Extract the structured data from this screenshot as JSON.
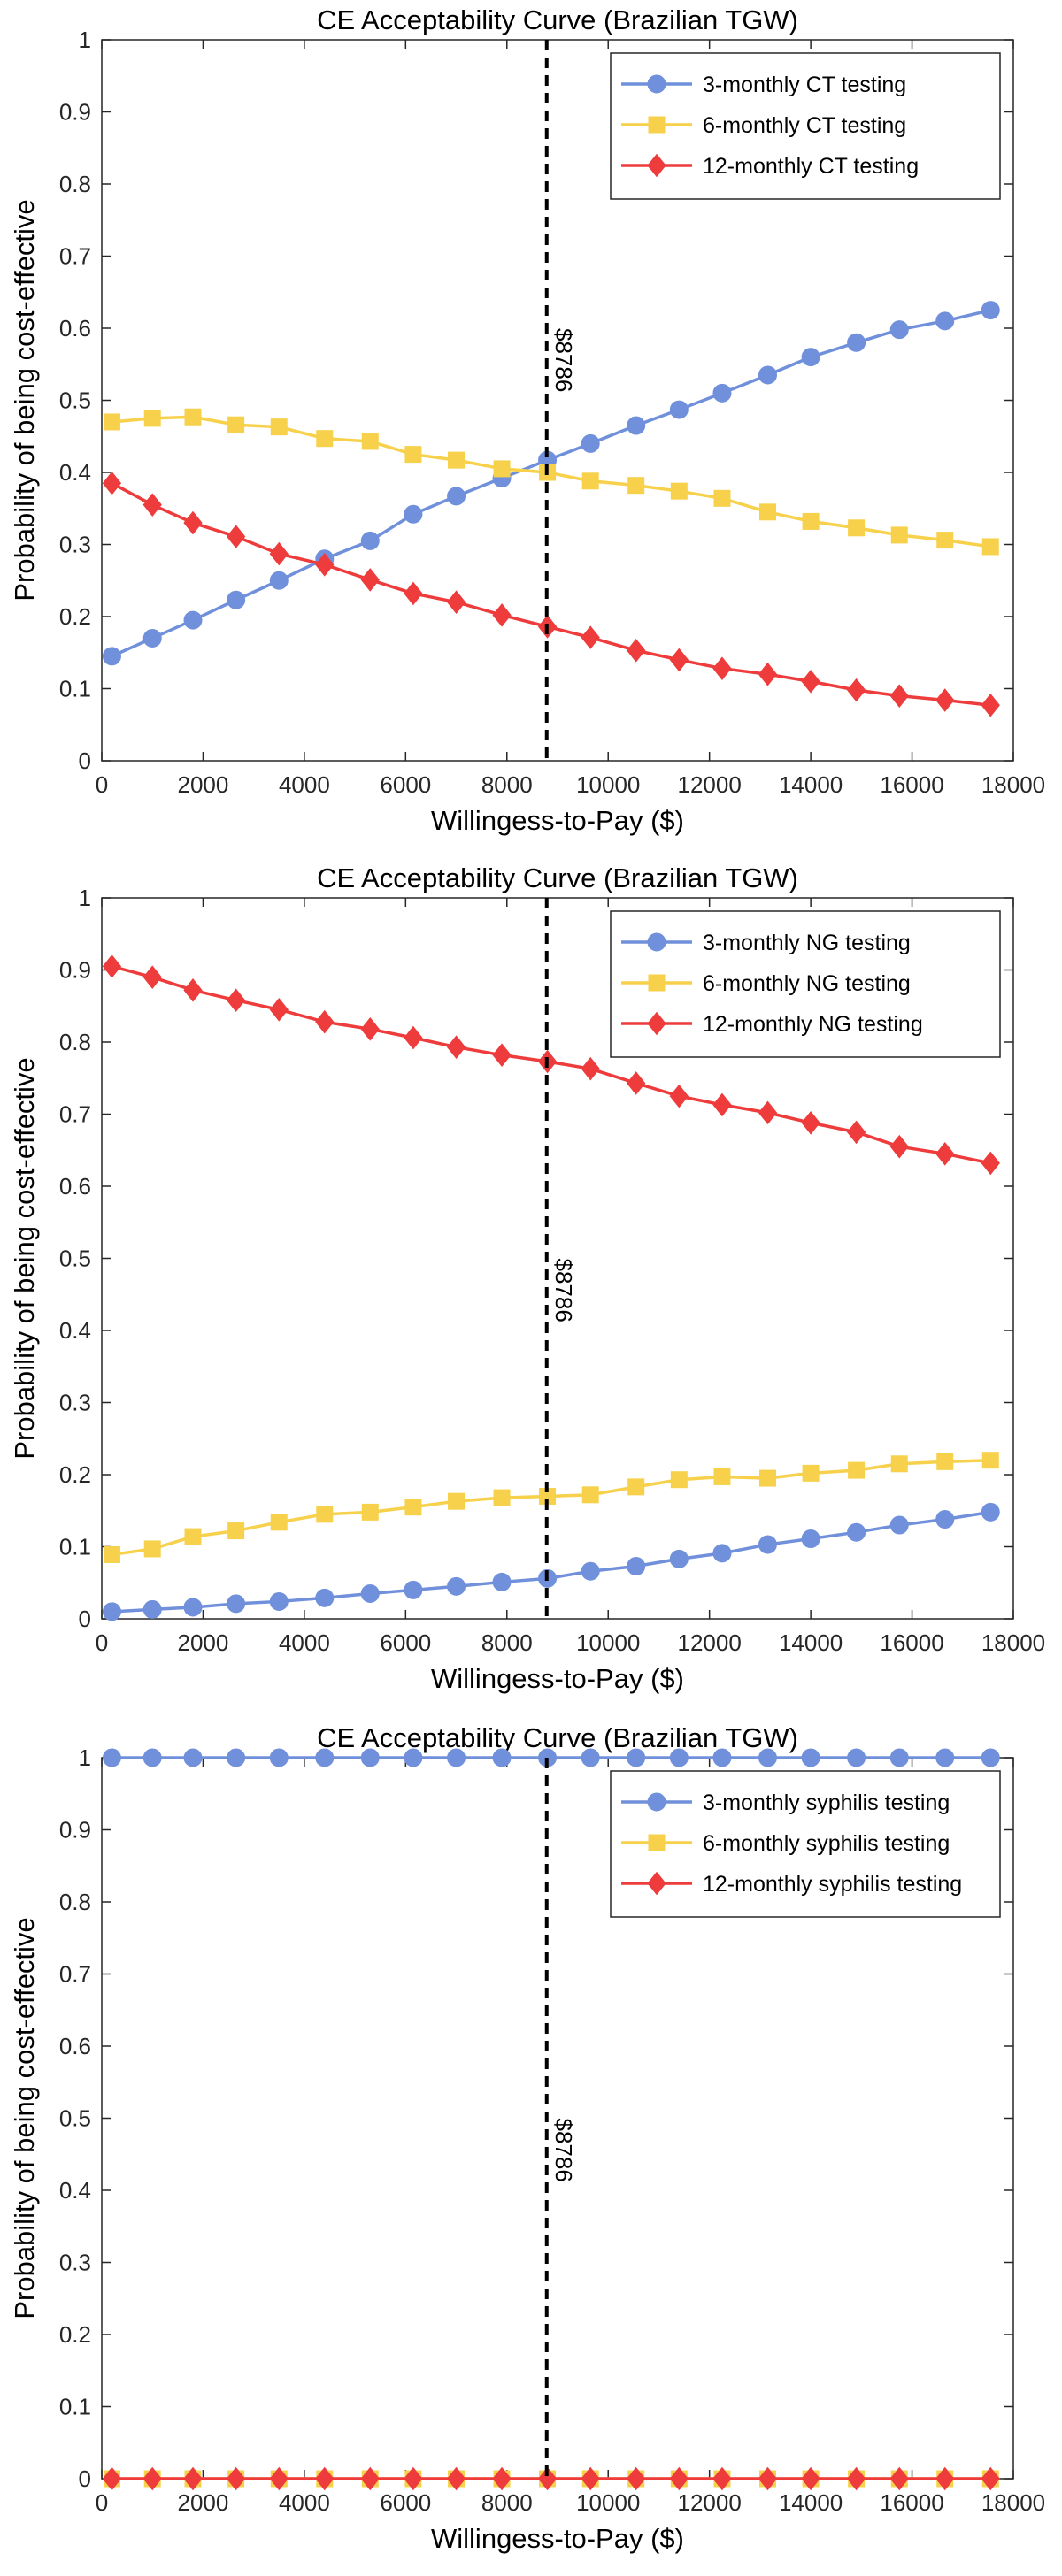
{
  "chart_data": [
    {
      "type": "line",
      "title": "CE Acceptability Curve (Brazilian TGW)",
      "xlabel": "Willingess-to-Pay ($)",
      "ylabel": "Probability of being cost-effective",
      "xlim": [
        0,
        18000
      ],
      "ylim": [
        0,
        1
      ],
      "xticks": [
        0,
        2000,
        4000,
        6000,
        8000,
        10000,
        12000,
        14000,
        16000,
        18000
      ],
      "yticks": [
        0,
        0.1,
        0.2,
        0.3,
        0.4,
        0.5,
        0.6,
        0.7,
        0.8,
        0.9,
        1
      ],
      "legend_position": "top-right",
      "grid": false,
      "x": [
        200,
        1000,
        1800,
        2650,
        3500,
        4400,
        5300,
        6150,
        7000,
        7900,
        8800,
        9650,
        10550,
        11400,
        12250,
        13150,
        14000,
        14900,
        15750,
        16650,
        17550
      ],
      "series": [
        {
          "name": "3-monthly CT testing",
          "color": "#7090dc",
          "marker": "circle",
          "values": [
            0.145,
            0.17,
            0.195,
            0.223,
            0.25,
            0.28,
            0.305,
            0.342,
            0.367,
            0.392,
            0.417,
            0.44,
            0.465,
            0.487,
            0.51,
            0.535,
            0.56,
            0.58,
            0.598,
            0.61,
            0.625
          ]
        },
        {
          "name": "6-monthly CT testing",
          "color": "#f7d14b",
          "marker": "square",
          "values": [
            0.47,
            0.475,
            0.477,
            0.466,
            0.463,
            0.447,
            0.443,
            0.425,
            0.417,
            0.405,
            0.4,
            0.388,
            0.382,
            0.374,
            0.364,
            0.345,
            0.332,
            0.323,
            0.313,
            0.306,
            0.297
          ]
        },
        {
          "name": "12-monthly CT testing",
          "color": "#ee3b3b",
          "marker": "diamond",
          "values": [
            0.385,
            0.355,
            0.33,
            0.311,
            0.287,
            0.272,
            0.251,
            0.232,
            0.22,
            0.202,
            0.186,
            0.171,
            0.153,
            0.14,
            0.128,
            0.12,
            0.11,
            0.098,
            0.09,
            0.084,
            0.077
          ]
        }
      ],
      "vline": {
        "x": 8786,
        "label": "$8786",
        "label_y": 0.6
      }
    },
    {
      "type": "line",
      "title": "CE Acceptability Curve (Brazilian TGW)",
      "xlabel": "Willingess-to-Pay ($)",
      "ylabel": "Probability of being cost-effective",
      "xlim": [
        0,
        18000
      ],
      "ylim": [
        0,
        1
      ],
      "xticks": [
        0,
        2000,
        4000,
        6000,
        8000,
        10000,
        12000,
        14000,
        16000,
        18000
      ],
      "yticks": [
        0,
        0.1,
        0.2,
        0.3,
        0.4,
        0.5,
        0.6,
        0.7,
        0.8,
        0.9,
        1
      ],
      "legend_position": "top-right",
      "grid": false,
      "x": [
        200,
        1000,
        1800,
        2650,
        3500,
        4400,
        5300,
        6150,
        7000,
        7900,
        8800,
        9650,
        10550,
        11400,
        12250,
        13150,
        14000,
        14900,
        15750,
        16650,
        17550
      ],
      "series": [
        {
          "name": "3-monthly NG testing",
          "color": "#7090dc",
          "marker": "circle",
          "values": [
            0.01,
            0.013,
            0.016,
            0.021,
            0.024,
            0.029,
            0.035,
            0.04,
            0.045,
            0.051,
            0.056,
            0.066,
            0.073,
            0.083,
            0.091,
            0.103,
            0.111,
            0.12,
            0.13,
            0.138,
            0.148
          ]
        },
        {
          "name": "6-monthly NG testing",
          "color": "#f7d14b",
          "marker": "square",
          "values": [
            0.089,
            0.097,
            0.114,
            0.122,
            0.134,
            0.145,
            0.148,
            0.155,
            0.163,
            0.168,
            0.17,
            0.172,
            0.183,
            0.193,
            0.197,
            0.195,
            0.202,
            0.206,
            0.215,
            0.218,
            0.22
          ]
        },
        {
          "name": "12-monthly NG testing",
          "color": "#ee3b3b",
          "marker": "diamond",
          "values": [
            0.905,
            0.89,
            0.872,
            0.858,
            0.845,
            0.828,
            0.818,
            0.806,
            0.793,
            0.782,
            0.773,
            0.763,
            0.743,
            0.725,
            0.713,
            0.702,
            0.688,
            0.675,
            0.655,
            0.645,
            0.632
          ]
        }
      ],
      "vline": {
        "x": 8786,
        "label": "$8786",
        "label_y": 0.5
      }
    },
    {
      "type": "line",
      "title": "CE Acceptability Curve (Brazilian TGW)",
      "xlabel": "Willingess-to-Pay ($)",
      "ylabel": "Probability of being cost-effective",
      "xlim": [
        0,
        18000
      ],
      "ylim": [
        0,
        1
      ],
      "xticks": [
        0,
        2000,
        4000,
        6000,
        8000,
        10000,
        12000,
        14000,
        16000,
        18000
      ],
      "yticks": [
        0,
        0.1,
        0.2,
        0.3,
        0.4,
        0.5,
        0.6,
        0.7,
        0.8,
        0.9,
        1
      ],
      "legend_position": "top-right",
      "grid": false,
      "x": [
        200,
        1000,
        1800,
        2650,
        3500,
        4400,
        5300,
        6150,
        7000,
        7900,
        8800,
        9650,
        10550,
        11400,
        12250,
        13150,
        14000,
        14900,
        15750,
        16650,
        17550
      ],
      "series": [
        {
          "name": "3-monthly syphilis testing",
          "color": "#7090dc",
          "marker": "circle",
          "values": [
            1,
            1,
            1,
            1,
            1,
            1,
            1,
            1,
            1,
            1,
            1,
            1,
            1,
            1,
            1,
            1,
            1,
            1,
            1,
            1,
            1
          ]
        },
        {
          "name": "6-monthly syphilis testing",
          "color": "#f7d14b",
          "marker": "square",
          "values": [
            0,
            0,
            0,
            0,
            0,
            0,
            0,
            0,
            0,
            0,
            0,
            0,
            0,
            0,
            0,
            0,
            0,
            0,
            0,
            0,
            0
          ]
        },
        {
          "name": "12-monthly syphilis testing",
          "color": "#ee3b3b",
          "marker": "diamond",
          "values": [
            0,
            0,
            0,
            0,
            0,
            0,
            0,
            0,
            0,
            0,
            0,
            0,
            0,
            0,
            0,
            0,
            0,
            0,
            0,
            0,
            0
          ]
        }
      ],
      "vline": {
        "x": 8786,
        "label": "$8786",
        "label_y": 0.5
      }
    }
  ]
}
